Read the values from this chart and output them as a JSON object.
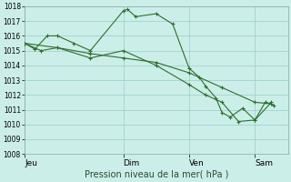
{
  "title": "Pression niveau de la mer( hPa )",
  "bg_color": "#cceee8",
  "grid_color": "#99cccc",
  "line_color": "#2d6e2d",
  "ylim": [
    1008,
    1018
  ],
  "yticks": [
    1008,
    1009,
    1010,
    1011,
    1012,
    1013,
    1014,
    1015,
    1016,
    1017,
    1018
  ],
  "xtick_labels": [
    "Jeu",
    "Dim",
    "Ven",
    "Sam"
  ],
  "xtick_positions": [
    0,
    48,
    80,
    112
  ],
  "xlim": [
    0,
    128
  ],
  "series": [
    {
      "x": [
        0,
        5,
        11,
        16,
        24,
        32,
        48,
        50,
        54,
        64,
        72,
        80,
        85,
        88,
        93,
        96,
        100,
        106,
        112,
        117,
        121
      ],
      "y": [
        1015.5,
        1015.1,
        1016.0,
        1016.0,
        1015.5,
        1015.0,
        1017.7,
        1017.8,
        1017.3,
        1017.5,
        1016.8,
        1013.8,
        1013.2,
        1012.6,
        1011.8,
        1010.8,
        1010.5,
        1011.1,
        1010.3,
        1011.5,
        1011.3
      ]
    },
    {
      "x": [
        0,
        8,
        16,
        32,
        48,
        64,
        80,
        88,
        96,
        104,
        112,
        120
      ],
      "y": [
        1015.5,
        1015.0,
        1015.2,
        1014.5,
        1015.0,
        1014.0,
        1012.7,
        1012.0,
        1011.5,
        1010.2,
        1010.3,
        1011.5
      ]
    },
    {
      "x": [
        0,
        16,
        32,
        48,
        64,
        80,
        96,
        112,
        120
      ],
      "y": [
        1015.5,
        1015.2,
        1014.8,
        1014.5,
        1014.2,
        1013.5,
        1012.5,
        1011.5,
        1011.4
      ]
    }
  ]
}
